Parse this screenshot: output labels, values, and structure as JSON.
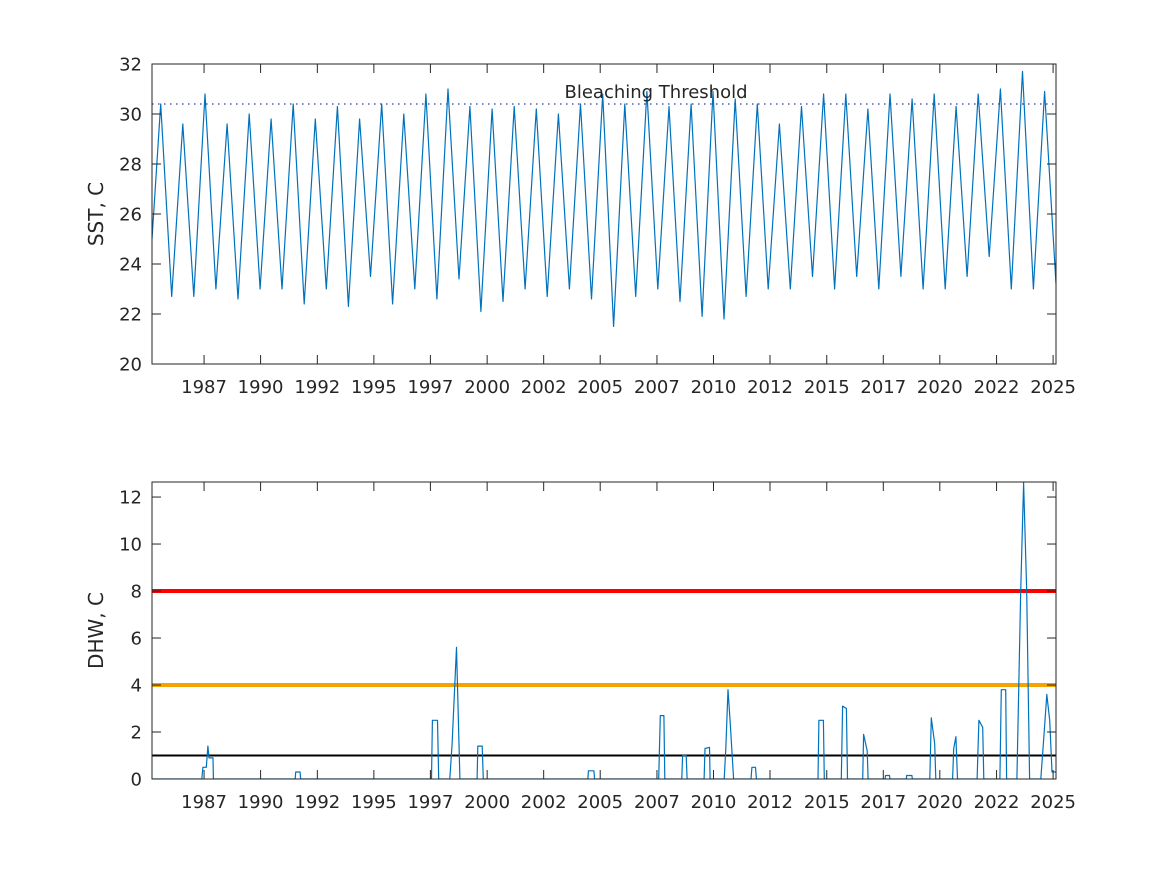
{
  "chart_data": [
    {
      "type": "line",
      "ylabel": "SST, C",
      "color": "#0072bd",
      "xlim": [
        1984.67,
        2025.13
      ],
      "xticks": [
        {
          "value": 1987.0,
          "label": "1987"
        },
        {
          "value": 1989.53,
          "label": "1990"
        },
        {
          "value": 1992.07,
          "label": "1992"
        },
        {
          "value": 1994.6,
          "label": "1995"
        },
        {
          "value": 1997.13,
          "label": "1997"
        },
        {
          "value": 1999.67,
          "label": "2000"
        },
        {
          "value": 2002.2,
          "label": "2002"
        },
        {
          "value": 2004.73,
          "label": "2005"
        },
        {
          "value": 2007.27,
          "label": "2007"
        },
        {
          "value": 2009.8,
          "label": "2010"
        },
        {
          "value": 2012.33,
          "label": "2012"
        },
        {
          "value": 2014.87,
          "label": "2015"
        },
        {
          "value": 2017.4,
          "label": "2017"
        },
        {
          "value": 2019.93,
          "label": "2020"
        },
        {
          "value": 2022.47,
          "label": "2022"
        },
        {
          "value": 2025.0,
          "label": "2025"
        }
      ],
      "ylim": [
        20,
        32
      ],
      "yticks": [
        20,
        22,
        24,
        26,
        28,
        30,
        32
      ],
      "threshold": {
        "label": "Bleaching Threshold",
        "value": 30.4,
        "color": "#2b3a9a"
      },
      "x": [
        1984.67,
        1985.06,
        1985.55,
        1986.05,
        1986.54,
        1987.04,
        1987.53,
        1988.03,
        1988.52,
        1989.02,
        1989.51,
        1990.0,
        1990.49,
        1990.99,
        1991.48,
        1991.98,
        1992.47,
        1992.97,
        1993.46,
        1993.96,
        1994.45,
        1994.95,
        1995.44,
        1995.94,
        1996.43,
        1996.93,
        1997.42,
        1997.92,
        1998.41,
        1998.9,
        1999.39,
        1999.89,
        2000.38,
        2000.88,
        2001.37,
        2001.87,
        2002.36,
        2002.86,
        2003.35,
        2003.85,
        2004.34,
        2004.84,
        2005.33,
        2005.83,
        2006.32,
        2006.82,
        2007.31,
        2007.81,
        2008.3,
        2008.8,
        2009.29,
        2009.78,
        2010.27,
        2010.77,
        2011.26,
        2011.76,
        2012.25,
        2012.75,
        2013.24,
        2013.74,
        2014.23,
        2014.73,
        2015.22,
        2015.72,
        2016.21,
        2016.71,
        2017.2,
        2017.7,
        2018.19,
        2018.69,
        2019.18,
        2019.68,
        2020.17,
        2020.66,
        2021.15,
        2021.65,
        2022.14,
        2022.64,
        2023.13,
        2023.63,
        2024.12,
        2024.62,
        2025.13
      ],
      "values": [
        25.0,
        30.4,
        22.7,
        29.6,
        22.7,
        30.8,
        23.0,
        29.6,
        22.6,
        30.0,
        23.0,
        29.8,
        23.0,
        30.4,
        22.4,
        29.8,
        23.0,
        30.3,
        22.3,
        29.8,
        23.5,
        30.4,
        22.4,
        30.0,
        23.0,
        30.8,
        22.6,
        31.0,
        23.4,
        30.3,
        22.1,
        30.2,
        22.5,
        30.3,
        23.0,
        30.2,
        22.7,
        30.0,
        23.0,
        30.4,
        22.6,
        30.8,
        21.5,
        30.4,
        22.7,
        30.9,
        23.0,
        30.3,
        22.5,
        30.4,
        21.9,
        30.9,
        21.8,
        30.6,
        22.7,
        30.4,
        23.0,
        29.6,
        23.0,
        30.3,
        23.5,
        30.8,
        23.0,
        30.8,
        23.5,
        30.2,
        23.0,
        30.8,
        23.5,
        30.6,
        23.0,
        30.8,
        23.0,
        30.3,
        23.5,
        30.8,
        24.3,
        31.0,
        23.0,
        31.7,
        23.0,
        30.9,
        23.2
      ]
    },
    {
      "type": "line",
      "ylabel": "DHW, C",
      "color": "#0072bd",
      "xlim": [
        1984.67,
        2025.13
      ],
      "xticks": [
        {
          "value": 1987.0,
          "label": "1987"
        },
        {
          "value": 1989.53,
          "label": "1990"
        },
        {
          "value": 1992.07,
          "label": "1992"
        },
        {
          "value": 1994.6,
          "label": "1995"
        },
        {
          "value": 1997.13,
          "label": "1997"
        },
        {
          "value": 1999.67,
          "label": "2000"
        },
        {
          "value": 2002.2,
          "label": "2002"
        },
        {
          "value": 2004.73,
          "label": "2005"
        },
        {
          "value": 2007.27,
          "label": "2007"
        },
        {
          "value": 2009.8,
          "label": "2010"
        },
        {
          "value": 2012.33,
          "label": "2012"
        },
        {
          "value": 2014.87,
          "label": "2015"
        },
        {
          "value": 2017.4,
          "label": "2017"
        },
        {
          "value": 2019.93,
          "label": "2020"
        },
        {
          "value": 2022.47,
          "label": "2022"
        },
        {
          "value": 2025.0,
          "label": "2025"
        }
      ],
      "ylim": [
        0,
        12.64
      ],
      "yticks": [
        0,
        2,
        4,
        6,
        8,
        10,
        12
      ],
      "reference_lines": [
        {
          "value": 8,
          "color": "#ff0000"
        },
        {
          "value": 4,
          "color": "#f5a300"
        },
        {
          "value": 1,
          "color": "#000000"
        }
      ],
      "x": [
        1984.67,
        1986.9,
        1986.95,
        1987.1,
        1987.17,
        1987.22,
        1987.4,
        1987.42,
        1991.08,
        1991.1,
        1991.3,
        1991.32,
        1997.18,
        1997.22,
        1997.45,
        1997.5,
        1998.0,
        1998.1,
        1998.3,
        1998.45,
        1999.22,
        1999.25,
        1999.45,
        1999.5,
        2004.18,
        2004.2,
        2004.45,
        2004.48,
        2007.35,
        2007.42,
        2007.58,
        2007.62,
        2008.38,
        2008.42,
        2008.58,
        2008.62,
        2009.38,
        2009.42,
        2009.62,
        2009.65,
        2010.28,
        2010.35,
        2010.45,
        2010.55,
        2010.7,
        2011.48,
        2011.52,
        2011.68,
        2011.72,
        2014.48,
        2014.52,
        2014.72,
        2014.76,
        2015.52,
        2015.58,
        2015.75,
        2015.8,
        2016.48,
        2016.52,
        2016.68,
        2016.72,
        2017.48,
        2017.5,
        2017.68,
        2017.7,
        2018.43,
        2018.45,
        2018.68,
        2018.7,
        2019.48,
        2019.55,
        2019.7,
        2019.75,
        2020.5,
        2020.55,
        2020.65,
        2020.72,
        2021.6,
        2021.68,
        2021.85,
        2021.9,
        2022.62,
        2022.68,
        2022.88,
        2022.92,
        2023.38,
        2023.55,
        2023.68,
        2023.82,
        2023.95,
        2024.45,
        2024.6,
        2024.72,
        2024.85,
        2024.95,
        2025.13
      ],
      "values": [
        0,
        0,
        0.5,
        0.5,
        1.4,
        0.9,
        0.9,
        0,
        0,
        0.3,
        0.3,
        0,
        0,
        2.5,
        2.5,
        0,
        0,
        1.5,
        5.6,
        0,
        0,
        1.4,
        1.4,
        0,
        0,
        0.35,
        0.35,
        0,
        0,
        2.7,
        2.7,
        0,
        0,
        1.0,
        1.0,
        0,
        0,
        1.3,
        1.35,
        0,
        0,
        1.3,
        3.8,
        2.4,
        0,
        0,
        0.5,
        0.5,
        0,
        0,
        2.5,
        2.5,
        0,
        0,
        3.1,
        3.0,
        0,
        0,
        1.9,
        1.2,
        0,
        0,
        0.15,
        0.15,
        0,
        0,
        0.15,
        0.15,
        0,
        0,
        2.6,
        1.5,
        0,
        0,
        1.3,
        1.8,
        0,
        0,
        2.5,
        2.2,
        0,
        0,
        3.8,
        3.8,
        0,
        0,
        8.0,
        12.6,
        8.0,
        0,
        0,
        2.0,
        3.6,
        2.5,
        0.3,
        0.3
      ]
    }
  ]
}
